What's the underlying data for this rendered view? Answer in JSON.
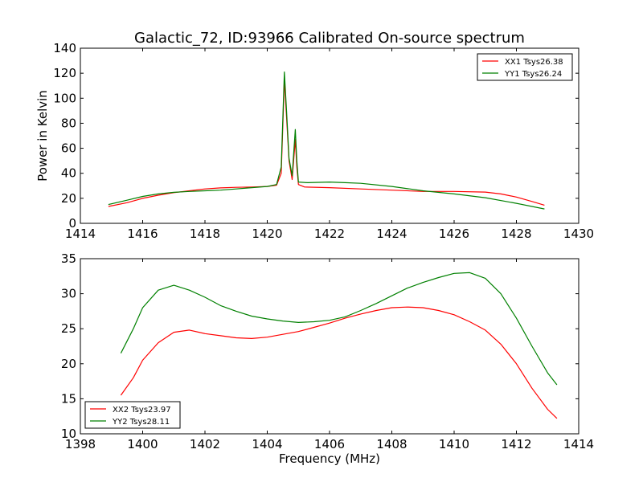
{
  "chart_data": [
    {
      "type": "line",
      "title": "Galactic_72, ID:93966 Calibrated On-source spectrum",
      "xlabel": "",
      "ylabel": "Power in Kelvin",
      "xlim": [
        1414,
        1430
      ],
      "ylim": [
        0,
        140
      ],
      "xticks": [
        "1414",
        "1416",
        "1418",
        "1420",
        "1422",
        "1424",
        "1426",
        "1428",
        "1430"
      ],
      "yticks": [
        "0",
        "20",
        "40",
        "60",
        "80",
        "100",
        "120",
        "140"
      ],
      "grid": false,
      "legend_position": "top-right",
      "series": [
        {
          "name": "XX1 Tsys26.38",
          "color": "#ff0000",
          "points": [
            [
              1414.9,
              13.5
            ],
            [
              1415.5,
              16.5
            ],
            [
              1416.0,
              20.0
            ],
            [
              1416.5,
              22.5
            ],
            [
              1417.0,
              24.5
            ],
            [
              1417.5,
              26.0
            ],
            [
              1418.0,
              27.5
            ],
            [
              1418.5,
              28.3
            ],
            [
              1419.0,
              28.8
            ],
            [
              1419.5,
              29.0
            ],
            [
              1420.0,
              29.5
            ],
            [
              1420.3,
              30.5
            ],
            [
              1420.45,
              40.0
            ],
            [
              1420.55,
              115.0
            ],
            [
              1420.62,
              85.0
            ],
            [
              1420.7,
              50.0
            ],
            [
              1420.8,
              35.0
            ],
            [
              1420.9,
              67.0
            ],
            [
              1420.95,
              45.0
            ],
            [
              1421.0,
              31.0
            ],
            [
              1421.2,
              29.0
            ],
            [
              1422.0,
              28.5
            ],
            [
              1423.0,
              27.5
            ],
            [
              1424.0,
              26.5
            ],
            [
              1425.0,
              25.5
            ],
            [
              1426.0,
              25.5
            ],
            [
              1427.0,
              25.0
            ],
            [
              1427.5,
              23.5
            ],
            [
              1428.0,
              21.0
            ],
            [
              1428.5,
              17.5
            ],
            [
              1428.9,
              14.5
            ]
          ]
        },
        {
          "name": "YY1 Tsys26.24",
          "color": "#008000",
          "points": [
            [
              1414.9,
              15.0
            ],
            [
              1415.5,
              18.5
            ],
            [
              1416.0,
              21.5
            ],
            [
              1416.5,
              23.5
            ],
            [
              1417.0,
              24.8
            ],
            [
              1417.5,
              25.5
            ],
            [
              1418.0,
              26.0
            ],
            [
              1418.5,
              26.5
            ],
            [
              1419.0,
              27.5
            ],
            [
              1419.5,
              28.5
            ],
            [
              1420.0,
              29.5
            ],
            [
              1420.3,
              31.0
            ],
            [
              1420.45,
              45.0
            ],
            [
              1420.55,
              121.0
            ],
            [
              1420.62,
              90.0
            ],
            [
              1420.7,
              52.0
            ],
            [
              1420.8,
              38.0
            ],
            [
              1420.9,
              75.0
            ],
            [
              1420.95,
              50.0
            ],
            [
              1421.0,
              33.0
            ],
            [
              1421.3,
              32.5
            ],
            [
              1422.0,
              33.0
            ],
            [
              1422.5,
              32.5
            ],
            [
              1423.0,
              32.0
            ],
            [
              1424.0,
              29.5
            ],
            [
              1425.0,
              26.0
            ],
            [
              1426.0,
              23.5
            ],
            [
              1427.0,
              20.5
            ],
            [
              1428.0,
              16.0
            ],
            [
              1428.9,
              11.5
            ]
          ]
        }
      ]
    },
    {
      "type": "line",
      "title": "",
      "xlabel": "Frequency (MHz)",
      "ylabel": "",
      "xlim": [
        1398,
        1414
      ],
      "ylim": [
        10,
        35
      ],
      "xticks": [
        "1398",
        "1400",
        "1402",
        "1404",
        "1406",
        "1408",
        "1410",
        "1412",
        "1414"
      ],
      "yticks": [
        "10",
        "15",
        "20",
        "25",
        "30",
        "35"
      ],
      "grid": false,
      "legend_position": "bottom-left",
      "series": [
        {
          "name": "XX2 Tsys23.97",
          "color": "#ff0000",
          "points": [
            [
              1399.3,
              15.5
            ],
            [
              1399.7,
              18.0
            ],
            [
              1400.0,
              20.5
            ],
            [
              1400.5,
              23.0
            ],
            [
              1401.0,
              24.5
            ],
            [
              1401.5,
              24.8
            ],
            [
              1402.0,
              24.3
            ],
            [
              1402.5,
              24.0
            ],
            [
              1403.0,
              23.7
            ],
            [
              1403.5,
              23.6
            ],
            [
              1404.0,
              23.8
            ],
            [
              1404.5,
              24.2
            ],
            [
              1405.0,
              24.6
            ],
            [
              1405.5,
              25.2
            ],
            [
              1406.0,
              25.8
            ],
            [
              1406.5,
              26.5
            ],
            [
              1407.0,
              27.1
            ],
            [
              1407.5,
              27.6
            ],
            [
              1408.0,
              28.0
            ],
            [
              1408.5,
              28.1
            ],
            [
              1409.0,
              28.0
            ],
            [
              1409.5,
              27.6
            ],
            [
              1410.0,
              27.0
            ],
            [
              1410.5,
              26.0
            ],
            [
              1411.0,
              24.8
            ],
            [
              1411.5,
              22.8
            ],
            [
              1412.0,
              20.0
            ],
            [
              1412.5,
              16.5
            ],
            [
              1413.0,
              13.5
            ],
            [
              1413.3,
              12.2
            ]
          ]
        },
        {
          "name": "YY2 Tsys28.11",
          "color": "#008000",
          "points": [
            [
              1399.3,
              21.5
            ],
            [
              1399.7,
              25.0
            ],
            [
              1400.0,
              28.0
            ],
            [
              1400.5,
              30.5
            ],
            [
              1401.0,
              31.2
            ],
            [
              1401.5,
              30.5
            ],
            [
              1402.0,
              29.5
            ],
            [
              1402.5,
              28.3
            ],
            [
              1403.0,
              27.5
            ],
            [
              1403.5,
              26.8
            ],
            [
              1404.0,
              26.4
            ],
            [
              1404.5,
              26.1
            ],
            [
              1405.0,
              25.9
            ],
            [
              1405.5,
              26.0
            ],
            [
              1406.0,
              26.2
            ],
            [
              1406.5,
              26.7
            ],
            [
              1407.0,
              27.6
            ],
            [
              1407.5,
              28.6
            ],
            [
              1408.0,
              29.7
            ],
            [
              1408.5,
              30.8
            ],
            [
              1409.0,
              31.6
            ],
            [
              1409.5,
              32.3
            ],
            [
              1410.0,
              32.9
            ],
            [
              1410.5,
              33.0
            ],
            [
              1411.0,
              32.2
            ],
            [
              1411.5,
              30.0
            ],
            [
              1412.0,
              26.5
            ],
            [
              1412.5,
              22.5
            ],
            [
              1413.0,
              18.7
            ],
            [
              1413.3,
              17.0
            ]
          ]
        }
      ]
    }
  ]
}
